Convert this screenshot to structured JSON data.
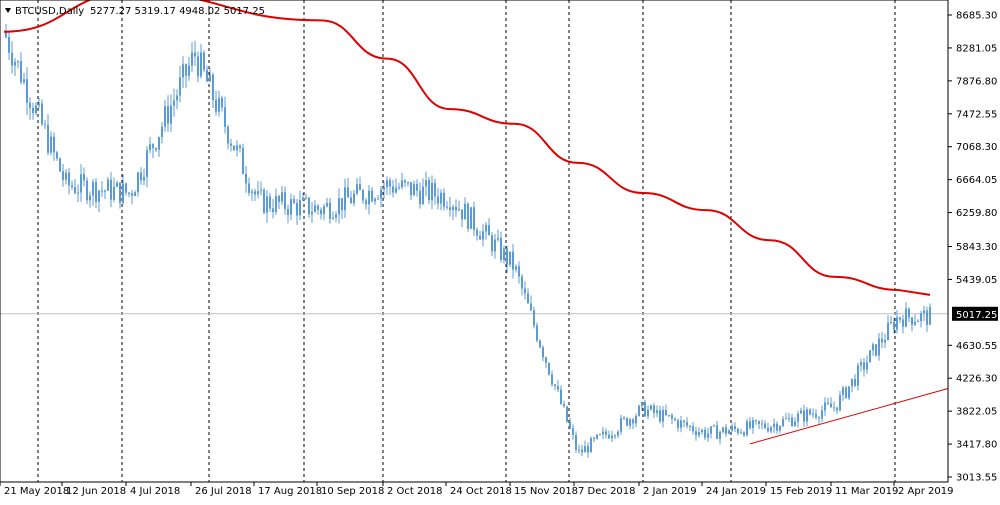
{
  "header": {
    "symbol_label": "BTCUSD,Daily",
    "ohlc_text": "5277.27 5319.17 4948.02 5017.25"
  },
  "current_price_label": "5017.25",
  "colors": {
    "candle": "#5b9bd5",
    "ma": "#e00000",
    "trendline": "#e00000",
    "price_line": "#c0c0c0",
    "axis": "#000000",
    "price_tag_bg": "#000000",
    "price_tag_text": "#ffffff"
  },
  "chart_data": {
    "type": "candlestick",
    "y_ticks": [
      "8685.30",
      "8281.05",
      "7876.80",
      "7472.55",
      "7068.30",
      "6664.05",
      "6259.80",
      "5843.30",
      "5439.05",
      "5017.25",
      "4630.55",
      "4226.30",
      "3822.05",
      "3417.80",
      "3013.55"
    ],
    "ylim": [
      3013.55,
      8685.3
    ],
    "x_labels": [
      "21 May 2018",
      "12 Jun 2018",
      "4 Jul 2018",
      "26 Jul 2018",
      "17 Aug 2018",
      "10 Sep 2018",
      "2 Oct 2018",
      "24 Oct 2018",
      "15 Nov 2018",
      "7 Dec 2018",
      "2 Jan 2019",
      "24 Jan 2019",
      "15 Feb 2019",
      "11 Mar 2019",
      "2 Apr 2019"
    ],
    "grid_vertical_after": [
      "21 May 2018",
      "4 Jul 2018",
      "26 Jul 2018",
      "17 Aug 2018",
      "10 Sep 2018",
      "2 Oct 2018",
      "24 Oct 2018",
      "15 Nov 2018",
      "7 Dec 2018",
      "2 Jan 2019",
      "24 Jan 2019",
      "2 Apr 2019"
    ],
    "close_path": [
      [
        "21 May 2018",
        8480
      ],
      [
        "12 Jun 2018",
        6600
      ],
      [
        "4 Jul 2018",
        6500
      ],
      [
        "26 Jul 2018",
        8200
      ],
      [
        "17 Aug 2018",
        6400
      ],
      [
        "10 Sep 2018",
        6300
      ],
      [
        "2 Oct 2018",
        6600
      ],
      [
        "24 Oct 2018",
        6450
      ],
      [
        "15 Nov 2018",
        5600
      ],
      [
        "7 Dec 2018",
        3300
      ],
      [
        "2 Jan 2019",
        3850
      ],
      [
        "24 Jan 2019",
        3550
      ],
      [
        "15 Feb 2019",
        3650
      ],
      [
        "11 Mar 2019",
        3880
      ],
      [
        "2 Apr 2019",
        4980
      ]
    ],
    "ma_path": [
      [
        "21 May 2018",
        8480
      ],
      [
        "4 Jul 2018",
        8960
      ],
      [
        "10 Sep 2018",
        8620
      ],
      [
        "2 Oct 2018",
        8150
      ],
      [
        "24 Oct 2018",
        7530
      ],
      [
        "15 Nov 2018",
        7350
      ],
      [
        "7 Dec 2018",
        6870
      ],
      [
        "2 Jan 2019",
        6500
      ],
      [
        "24 Jan 2019",
        6290
      ],
      [
        "15 Feb 2019",
        5920
      ],
      [
        "11 Mar 2019",
        5470
      ],
      [
        "2 Apr 2019",
        5310
      ]
    ],
    "trendline": [
      [
        "24 Jan 2019",
        3420
      ],
      [
        "2 Apr 2019",
        4100
      ]
    ],
    "current_price": 5017.25
  }
}
